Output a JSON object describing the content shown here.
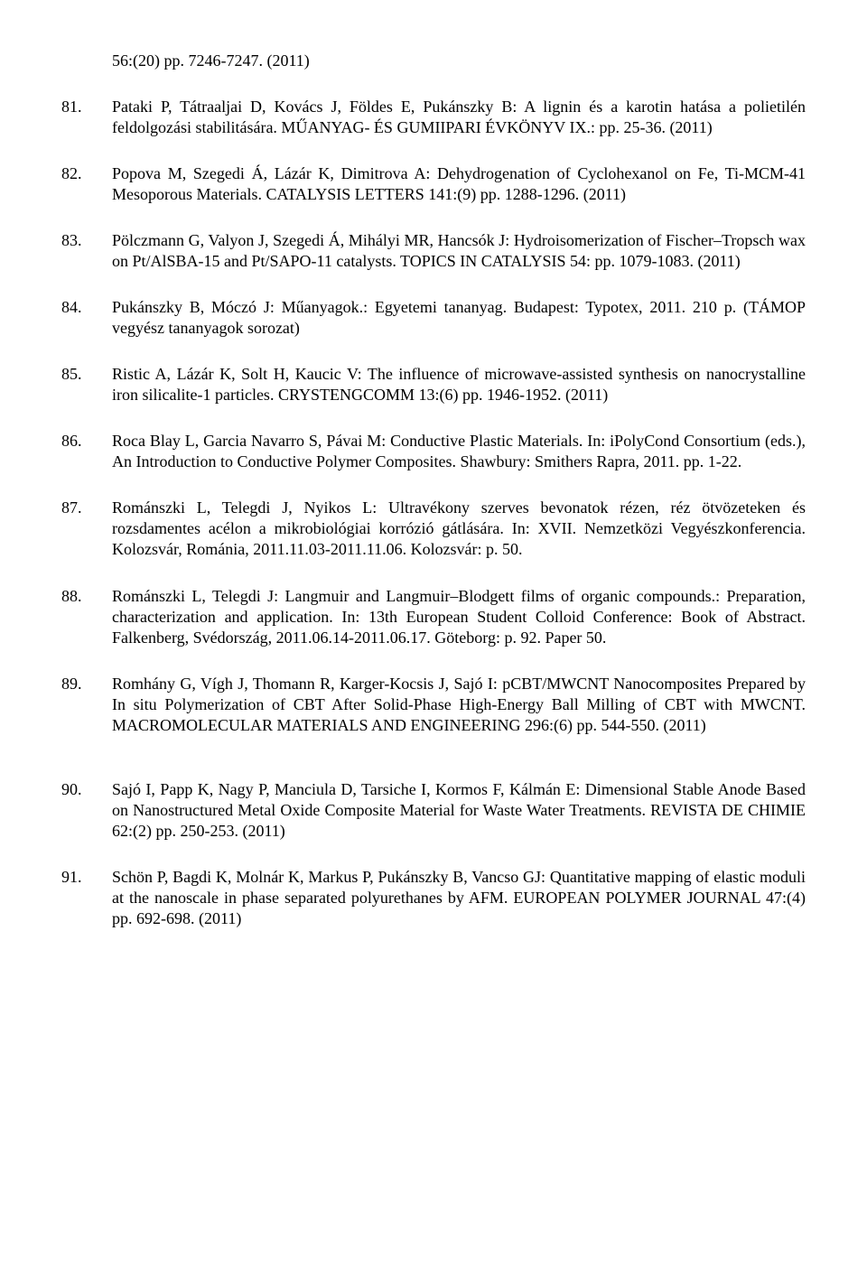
{
  "pre_item": "56:(20) pp. 7246-7247. (2011)",
  "start_number": 80,
  "refs": [
    "Pataki P, Tátraaljai D, Kovács J, Földes E, Pukánszky B: A lignin és a karotin hatása a polietilén feldolgozási stabilitására. MŰANYAG- ÉS GUMIIPARI ÉVKÖNYV IX.: pp. 25-36. (2011)",
    "Popova M, Szegedi Á, Lázár K, Dimitrova A: Dehydrogenation of Cyclohexanol on Fe, Ti-MCM-41 Mesoporous Materials. CATALYSIS LETTERS 141:(9) pp. 1288-1296. (2011)",
    "Pölczmann G, Valyon J, Szegedi Á, Mihályi MR, Hancsók J: Hydroisomerization of Fischer–Tropsch wax on Pt/AlSBA-15 and Pt/SAPO-11 catalysts. TOPICS IN CATALYSIS 54: pp. 1079-1083. (2011)",
    "Pukánszky B, Móczó J: Műanyagok.: Egyetemi tananyag. Budapest: Typotex, 2011. 210 p. (TÁMOP vegyész tananyagok sorozat)",
    "Ristic A, Lázár K, Solt H, Kaucic V: The influence of microwave-assisted synthesis on nanocrystalline iron silicalite-1 particles. CRYSTENGCOMM 13:(6) pp. 1946-1952. (2011)",
    "Roca Blay L, Garcia Navarro S, Pávai M: Conductive Plastic Materials. In: iPolyCond Consortium (eds.), An Introduction to Conductive Polymer Composites. Shawbury: Smithers Rapra, 2011. pp. 1-22.",
    "Románszki L, Telegdi J, Nyikos L: Ultravékony szerves bevonatok rézen, réz ötvözeteken és rozsdamentes acélon a mikrobiológiai korrózió gátlására. In: XVII. Nemzetközi Vegyészkonferencia. Kolozsvár, Románia, 2011.11.03-2011.11.06. Kolozsvár: p. 50.",
    "Románszki L, Telegdi J: Langmuir and Langmuir–Blodgett films of organic compounds.: Preparation, characterization and application. In: 13th European Student Colloid Conference: Book of Abstract. Falkenberg, Svédország, 2011.06.14-2011.06.17. Göteborg: p. 92. Paper 50.",
    "Romhány G, Vígh J, Thomann R, Karger-Kocsis J, Sajó I: pCBT/MWCNT Nanocomposites Prepared by In situ Polymerization of CBT After Solid-Phase High-Energy Ball Milling of CBT with MWCNT. MACROMOLECULAR MATERIALS AND ENGINEERING 296:(6) pp. 544-550. (2011)",
    "Sajó I, Papp K, Nagy P, Manciula D, Tarsiche I, Kormos F, Kálmán E: Dimensional Stable Anode Based on Nanostructured Metal Oxide Composite Material for Waste Water Treatments. REVISTA DE CHIMIE 62:(2) pp. 250-253. (2011)",
    "Schön P, Bagdi K, Molnár K, Markus P, Pukánszky B, Vancso GJ: Quantitative mapping of elastic moduli at the nanoscale in phase separated polyurethanes by AFM. EUROPEAN POLYMER JOURNAL 47:(4) pp. 692-698. (2011)"
  ],
  "extra_gap_before_index": 9
}
